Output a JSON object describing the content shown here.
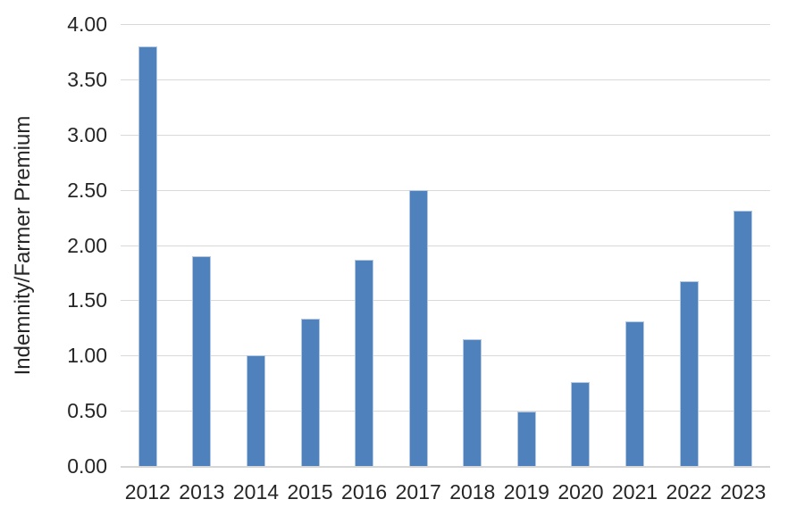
{
  "chart_data": {
    "type": "bar",
    "categories": [
      "2012",
      "2013",
      "2014",
      "2015",
      "2016",
      "2017",
      "2018",
      "2019",
      "2020",
      "2021",
      "2022",
      "2023"
    ],
    "values": [
      3.8,
      1.9,
      1.0,
      1.33,
      1.87,
      2.5,
      1.15,
      0.49,
      0.76,
      1.31,
      1.67,
      2.31
    ],
    "title": "",
    "xlabel": "",
    "ylabel": "Indemnity/Farmer Premium",
    "ylim": [
      0,
      4
    ],
    "ytick_interval": 0.5,
    "ytick_labels": [
      "0.00",
      "0.50",
      "1.00",
      "1.50",
      "2.00",
      "2.50",
      "3.00",
      "3.50",
      "4.00"
    ],
    "grid": "horizontal",
    "legend": "none",
    "colors": {
      "bar_fill": "#4F81BD",
      "bar_border": "#B3C9E2",
      "gridline": "#D9D9D9",
      "axis_line": "#D6D6D6",
      "text": "#262626",
      "background": "#FFFFFF"
    }
  }
}
